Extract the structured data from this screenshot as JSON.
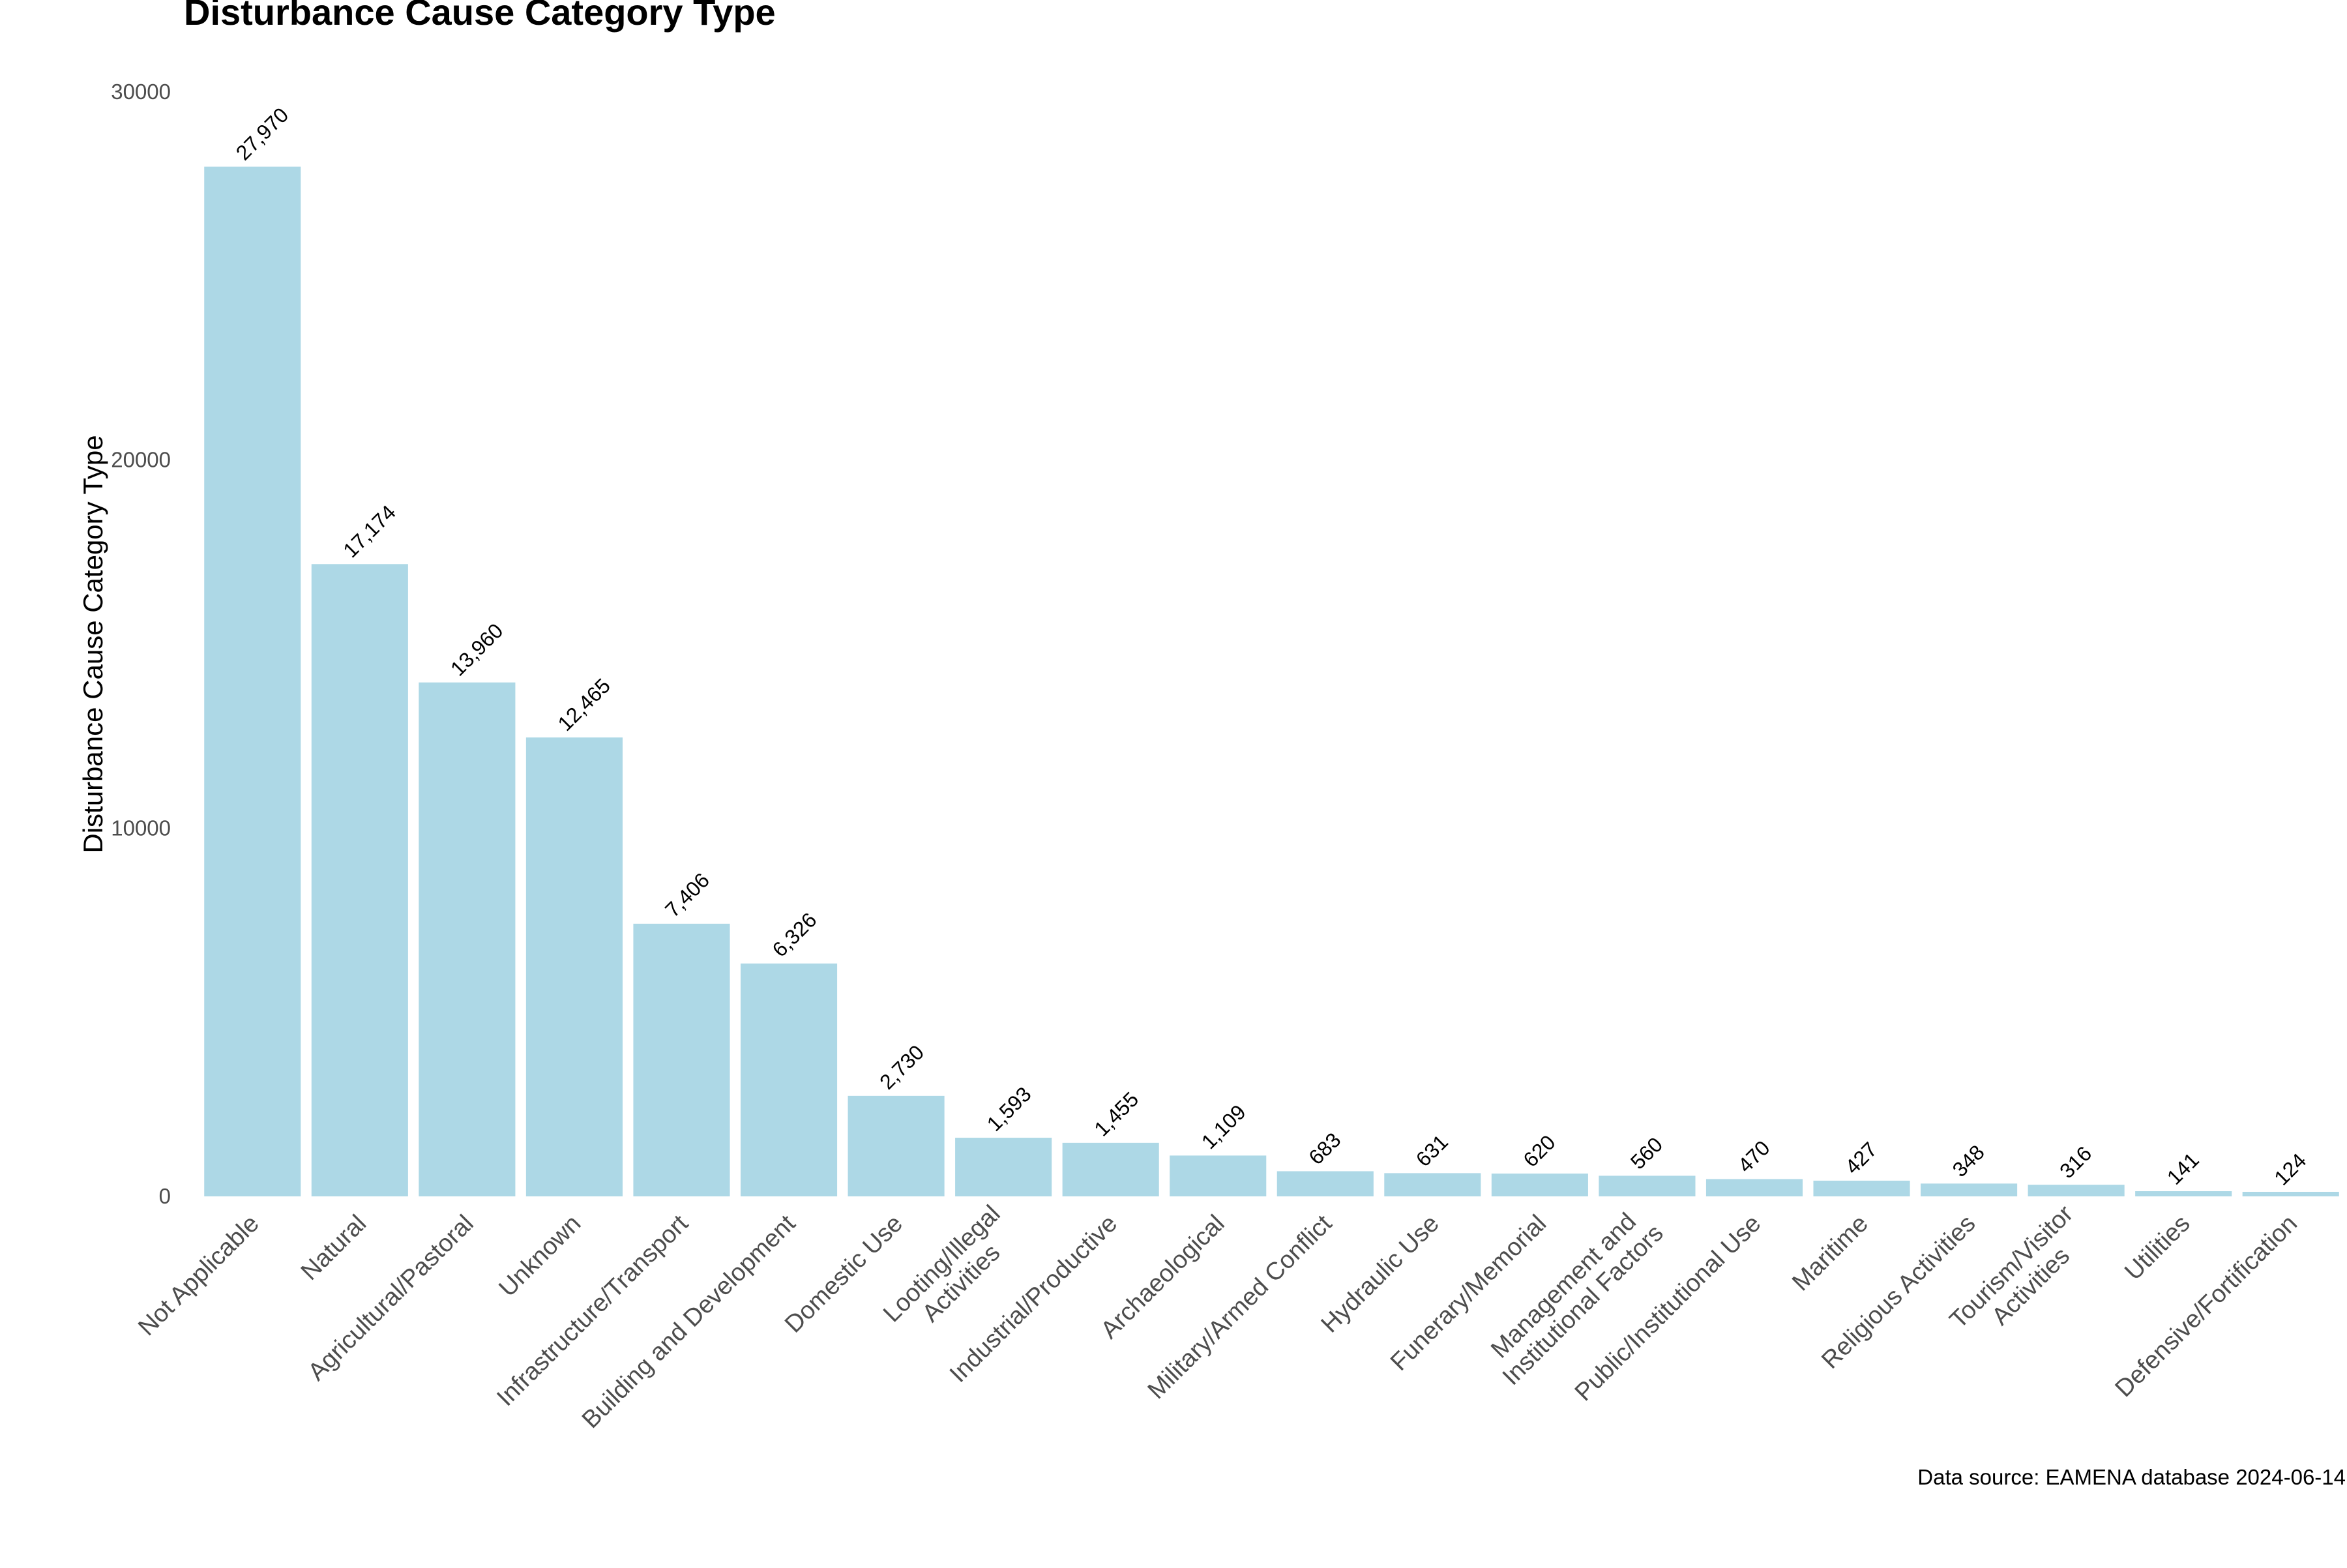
{
  "chart_data": {
    "type": "bar",
    "title": "Disturbance Cause Category Type",
    "xlabel": "",
    "ylabel": "Disturbance Cause Category Type",
    "caption": "Data source: EAMENA database 2024-06-14",
    "ylim": [
      0,
      30000
    ],
    "yticks": [
      "0",
      "10000",
      "20000",
      "30000"
    ],
    "grid": false,
    "legend": "none",
    "bar_color": "#add8e6",
    "categories": [
      "Not Applicable",
      "Natural",
      "Agricultural/Pastoral",
      "Unknown",
      "Infrastructure/Transport",
      "Building and Development",
      "Domestic Use",
      "Looting/Illegal Activities",
      "Industrial/Productive",
      "Archaeological",
      "Military/Armed Conflict",
      "Hydraulic Use",
      "Funerary/Memorial",
      "Management and Institutional Factors",
      "Public/Institutional Use",
      "Maritime",
      "Religious Activities",
      "Tourism/Visitor Activities",
      "Utilities",
      "Defensive/Fortification"
    ],
    "category_lines": [
      [
        "Not Applicable"
      ],
      [
        "Natural"
      ],
      [
        "Agricultural/Pastoral"
      ],
      [
        "Unknown"
      ],
      [
        "Infrastructure/Transport"
      ],
      [
        "Building and Development"
      ],
      [
        "Domestic Use"
      ],
      [
        "Looting/Illegal",
        "Activities"
      ],
      [
        "Industrial/Productive"
      ],
      [
        "Archaeological"
      ],
      [
        "Military/Armed Conflict"
      ],
      [
        "Hydraulic Use"
      ],
      [
        "Funerary/Memorial"
      ],
      [
        "Management and",
        "Institutional Factors"
      ],
      [
        "Public/Institutional Use"
      ],
      [
        "Maritime"
      ],
      [
        "Religious Activities"
      ],
      [
        "Tourism/Visitor",
        "Activities"
      ],
      [
        "Utilities"
      ],
      [
        "Defensive/Fortification"
      ]
    ],
    "values": [
      27970,
      17174,
      13960,
      12465,
      7406,
      6326,
      2730,
      1593,
      1455,
      1109,
      683,
      631,
      620,
      560,
      470,
      427,
      348,
      316,
      141,
      124
    ],
    "value_labels": [
      "27,970",
      "17,174",
      "13,960",
      "12,465",
      "7,406",
      "6,326",
      "2,730",
      "1,593",
      "1,455",
      "1,109",
      "683",
      "631",
      "620",
      "560",
      "470",
      "427",
      "348",
      "316",
      "141",
      "124"
    ]
  }
}
